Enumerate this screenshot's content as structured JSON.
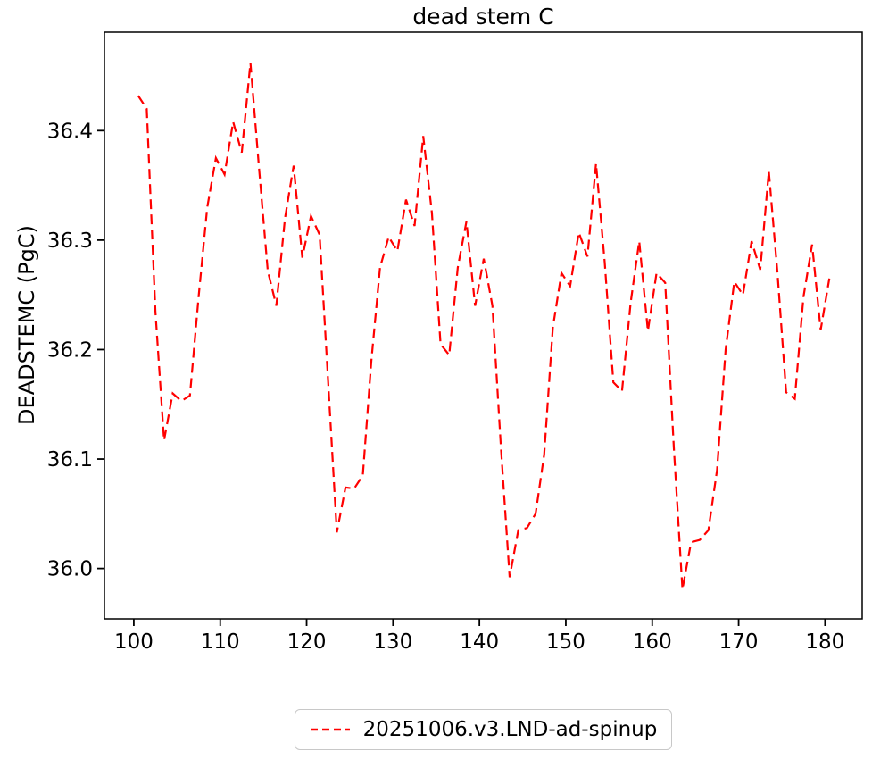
{
  "title": "dead stem C",
  "ylabel": "DEADSTEMC (PgC)",
  "legend": {
    "label": "20251006.v3.LND-ad-spinup",
    "line_color": "#ff0000",
    "line_style": "dashed",
    "position": "bottom-center-below-axes"
  },
  "chart_data": {
    "type": "line",
    "title": "dead stem C",
    "xlabel": "",
    "ylabel": "DEADSTEMC (PgC)",
    "xlim": [
      96.6,
      184.3
    ],
    "ylim": [
      35.954,
      36.49
    ],
    "grid": false,
    "x_ticks": [
      100,
      110,
      120,
      130,
      140,
      150,
      160,
      170,
      180
    ],
    "x_tick_labels": [
      "100",
      "110",
      "120",
      "130",
      "140",
      "150",
      "160",
      "170",
      "180"
    ],
    "y_ticks": [
      36.0,
      36.1,
      36.2,
      36.3,
      36.4
    ],
    "y_tick_labels": [
      "36.0",
      "36.1",
      "36.2",
      "36.3",
      "36.4"
    ],
    "x_start": 100.5,
    "x_step": 1,
    "series": [
      {
        "name": "20251006.v3.LND-ad-spinup",
        "color": "#ff0000",
        "linestyle": "dashed",
        "values": [
          36.432,
          36.42,
          36.235,
          36.117,
          36.16,
          36.153,
          36.158,
          36.248,
          36.33,
          36.375,
          36.36,
          36.408,
          36.38,
          36.462,
          36.365,
          36.272,
          36.24,
          36.32,
          36.368,
          36.284,
          36.322,
          36.305,
          36.17,
          36.033,
          36.074,
          36.073,
          36.085,
          36.19,
          36.275,
          36.303,
          36.29,
          36.337,
          36.313,
          36.395,
          36.325,
          36.205,
          36.195,
          36.275,
          36.317,
          36.24,
          36.283,
          36.24,
          36.11,
          35.992,
          36.035,
          36.037,
          36.05,
          36.104,
          36.22,
          36.27,
          36.258,
          36.307,
          36.285,
          36.37,
          36.28,
          36.17,
          36.162,
          36.243,
          36.299,
          36.217,
          36.27,
          36.261,
          36.11,
          35.981,
          36.024,
          36.026,
          36.035,
          36.09,
          36.2,
          36.262,
          36.25,
          36.299,
          36.273,
          36.363,
          36.27,
          36.161,
          36.155,
          36.248,
          36.296,
          36.218,
          36.265
        ]
      }
    ]
  }
}
